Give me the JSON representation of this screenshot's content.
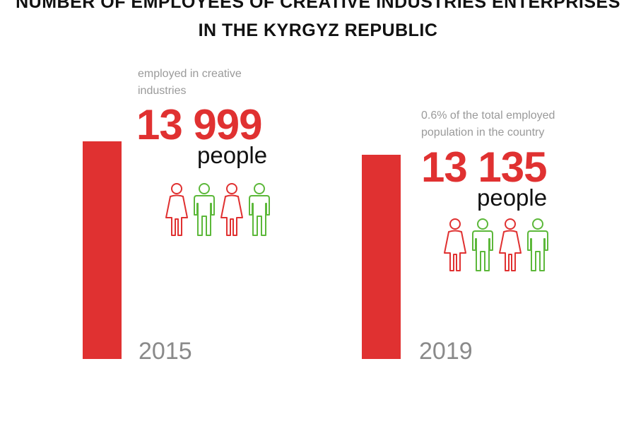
{
  "title": {
    "line1": "NUMBER OF EMPLOYEES OF CREATIVE INDUSTRIES ENTERPRISES",
    "line2": "IN THE KYRGYZ REPUBLIC"
  },
  "colors": {
    "bar": "#e03131",
    "female_figure": "#e03131",
    "male_figure": "#5cb83a",
    "year_text": "#8a8a8a",
    "note_text": "#9a9a9a"
  },
  "icons": [
    "female-person-icon",
    "male-person-icon",
    "female-person-icon",
    "male-person-icon"
  ],
  "chart_data": {
    "type": "bar",
    "categories": [
      "2015",
      "2019"
    ],
    "values": [
      13999,
      13135
    ],
    "unit": "people",
    "notes": [
      {
        "line1": "employed in creative",
        "line2": "industries"
      },
      {
        "line1": "0.6% of the total employed",
        "line2": "population in the country"
      }
    ],
    "value_labels": [
      "13 999",
      "13 135"
    ],
    "unit_labels": [
      "people",
      "people"
    ]
  }
}
